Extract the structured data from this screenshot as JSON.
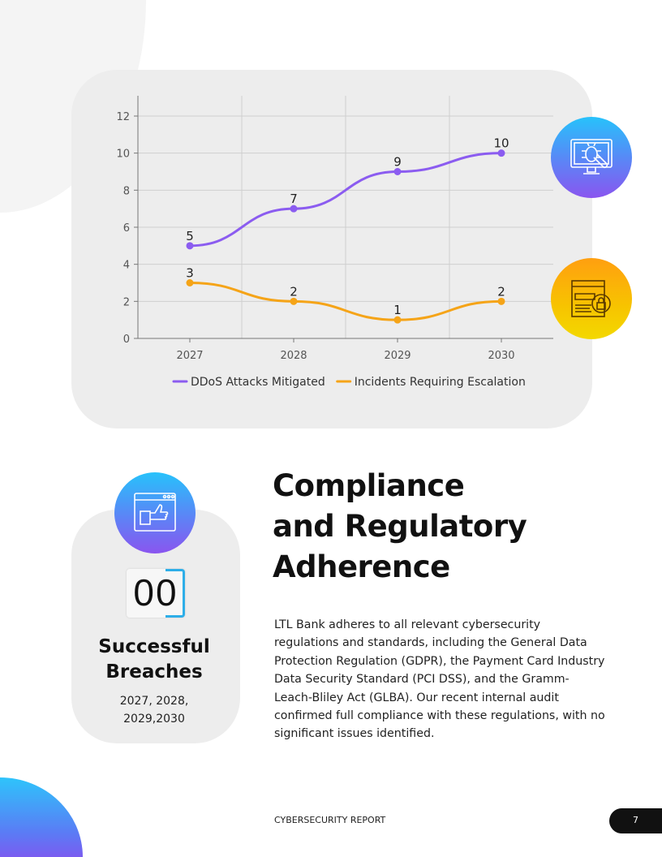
{
  "chart_data": {
    "type": "line",
    "categories": [
      "2027",
      "2028",
      "2029",
      "2030"
    ],
    "ylim": [
      0,
      12
    ],
    "yticks": [
      0,
      2,
      4,
      6,
      8,
      10,
      12
    ],
    "grid": true,
    "legend": "bottom",
    "series": [
      {
        "name": "DDoS Attacks Mitigated",
        "values": [
          5,
          7,
          9,
          10
        ],
        "color": "#8b5cf0"
      },
      {
        "name": "Incidents Requiring Escalation",
        "values": [
          3,
          2,
          1,
          2
        ],
        "color": "#f5a418"
      }
    ]
  },
  "icons": {
    "chart_icon_1": "bug-monitor-icon",
    "chart_icon_2": "secure-browser-lock-icon",
    "stat_icon": "browser-thumbs-up-icon"
  },
  "stat": {
    "value": "00",
    "title_line1": "Successful",
    "title_line2": "Breaches",
    "years_line1": "2027, 2028,",
    "years_line2": "2029,2030"
  },
  "section": {
    "heading_line1": "Compliance",
    "heading_line2": "and Regulatory",
    "heading_line3": "Adherence",
    "body": "LTL Bank adheres to all relevant cybersecurity regulations and standards, including the General Data Protection Regulation (GDPR), the Payment Card Industry Data Security Standard (PCI DSS), and the Gramm-Leach-Bliley Act (GLBA). Our recent internal audit confirmed full compliance with these regulations, with no significant issues identified."
  },
  "footer": {
    "label": "CYBERSECURITY REPORT",
    "page": "7"
  }
}
